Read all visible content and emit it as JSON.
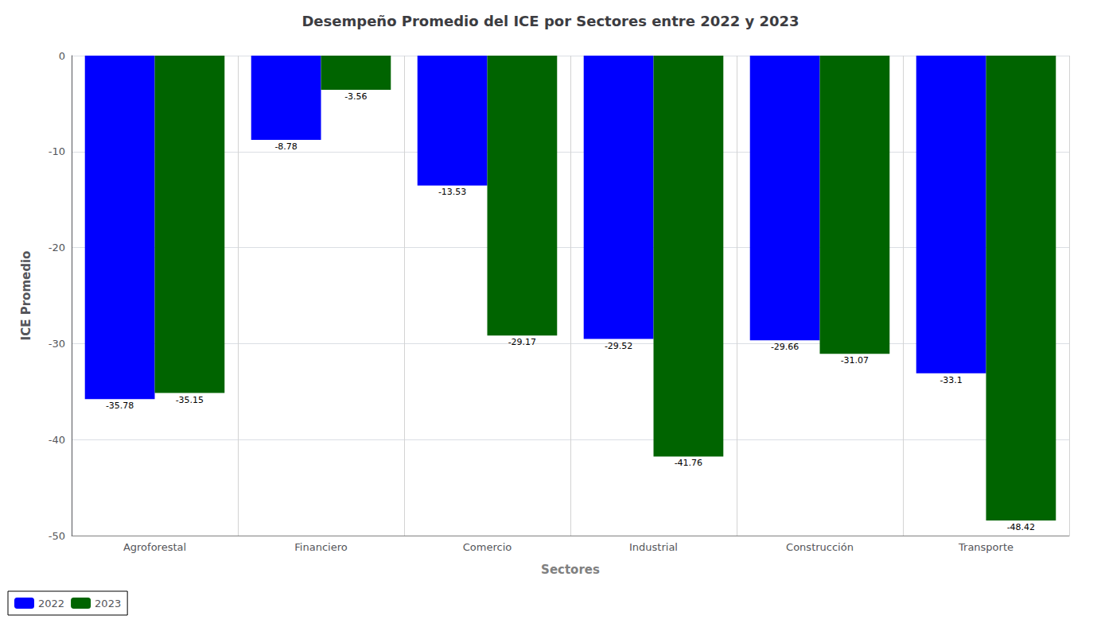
{
  "chart_data": {
    "type": "bar",
    "title": "Desempeño Promedio del ICE por Sectores entre 2022 y 2023",
    "x_label": "Sectores",
    "y_label": "ICE Promedio",
    "categories": [
      "Agroforestal",
      "Financiero",
      "Comercio",
      "Industrial",
      "Construcción",
      "Transporte"
    ],
    "series": [
      {
        "name": "2022",
        "color": "#0000ff",
        "values": [
          -35.78,
          -8.78,
          -13.53,
          -29.52,
          -29.66,
          -33.1
        ]
      },
      {
        "name": "2023",
        "color": "#006400",
        "values": [
          -35.15,
          -3.56,
          -29.17,
          -41.76,
          -31.07,
          -48.42
        ]
      }
    ],
    "ylim": [
      -50,
      0
    ],
    "yticks": [
      0,
      -10,
      -20,
      -30,
      -40,
      -50
    ],
    "grid": true,
    "legend": "lower left",
    "data_labels": true
  }
}
